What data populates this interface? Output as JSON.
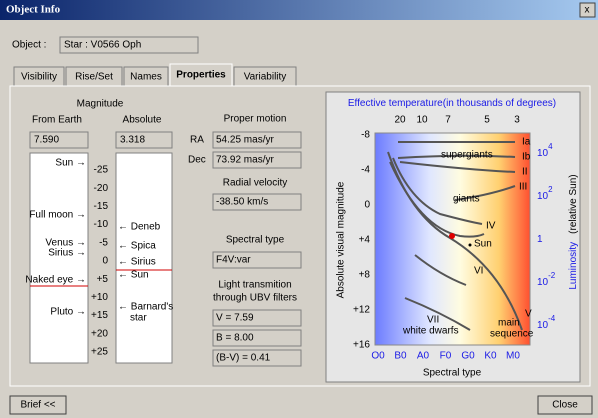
{
  "window": {
    "title": "Object Info",
    "close": "x"
  },
  "object": {
    "label": "Object :",
    "value": "Star : V0566 Oph"
  },
  "tabs": [
    "Visibility",
    "Rise/Set",
    "Names",
    "Properties",
    "Variability"
  ],
  "active_tab": 3,
  "magnitude": {
    "title": "Magnitude",
    "from_earth_label": "From Earth",
    "absolute_label": "Absolute",
    "from_earth": "7.590",
    "absolute": "3.318",
    "scale": [
      "-25",
      "-20",
      "-15",
      "-10",
      "-5",
      "0",
      "+5",
      "+10",
      "+15",
      "+20",
      "+25"
    ],
    "earth_markers": [
      "Sun →",
      "Full moon →",
      "Venus →",
      "Sirius →",
      "Naked eye →",
      "Pluto →"
    ],
    "absolute_markers": [
      "← Deneb",
      "← Spica",
      "← Sirius",
      "← Sun",
      "← Barnard's",
      "star"
    ]
  },
  "proper_motion": {
    "title": "Proper motion",
    "ra_label": "RA",
    "ra": "54.25 mas/yr",
    "dec_label": "Dec",
    "dec": "73.92 mas/yr"
  },
  "radial_velocity": {
    "title": "Radial velocity",
    "value": "-38.50 km/s"
  },
  "spectral_type": {
    "title": "Spectral type",
    "value": "F4V:var"
  },
  "light": {
    "title": [
      "Light transmition",
      "through UBV filters"
    ],
    "v": "V = 7.59",
    "b": "B = 8.00",
    "bv": "(B-V) = 0.41"
  },
  "hr_diagram": {
    "title": "Effective temperature",
    "title_note": "(in thousands of degrees)",
    "temperature_ticks": [
      "20",
      "10",
      "7",
      "5",
      "3"
    ],
    "magnitude_ticks": [
      "-8",
      "-4",
      "0",
      "+4",
      "+8",
      "+12",
      "+16"
    ],
    "luminosity_ticks": [
      {
        "base": "10",
        "exp": "4"
      },
      {
        "base": "10",
        "exp": "2"
      },
      {
        "base": "1",
        "exp": ""
      },
      {
        "base": "10",
        "exp": "-2"
      },
      {
        "base": "10",
        "exp": "-4"
      }
    ],
    "spectral_ticks": [
      "O0",
      "B0",
      "A0",
      "F0",
      "G0",
      "K0",
      "M0"
    ],
    "y_label": "Absolute visual magnitude",
    "luminosity_label": "Luminosity",
    "luminosity_note": "(relative Sun)",
    "x_label": "Spectral type",
    "classes": [
      "Ia",
      "Ib",
      "II",
      "III",
      "IV",
      "V",
      "VI",
      "VII"
    ],
    "regions": [
      "supergiants",
      "giants",
      "Sun",
      "white dwarfs",
      "main",
      "sequence"
    ]
  },
  "buttons": {
    "brief": "Brief <<",
    "close": "Close"
  }
}
